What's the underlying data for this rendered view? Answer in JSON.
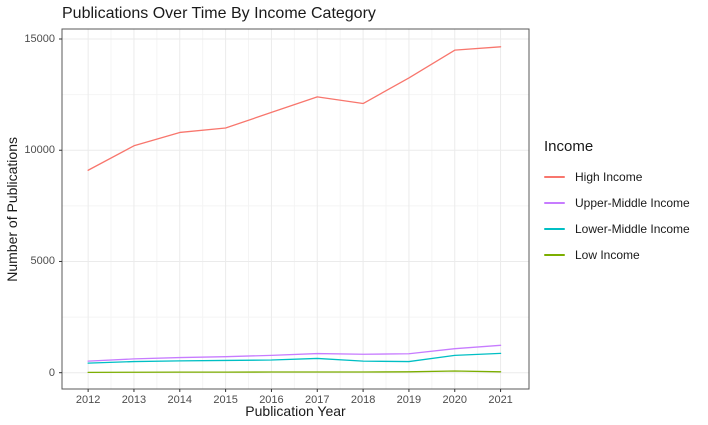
{
  "chart_data": {
    "type": "line",
    "title": "Publications Over Time By Income Category",
    "xlabel": "Publication Year",
    "ylabel": "Number of Publications",
    "legend_title": "Income",
    "legend_position": "right",
    "grid": true,
    "x": [
      2012,
      2013,
      2014,
      2015,
      2016,
      2017,
      2018,
      2019,
      2020,
      2021
    ],
    "x_tick_labels": [
      "2012",
      "2013",
      "2014",
      "2015",
      "2016",
      "2017",
      "2018",
      "2019",
      "2020",
      "2021"
    ],
    "y_ticks": [
      {
        "value": 0,
        "label": "0"
      },
      {
        "value": 5000,
        "label": "5000"
      },
      {
        "value": 10000,
        "label": "10000"
      },
      {
        "value": 15000,
        "label": "15000"
      }
    ],
    "xlim": [
      2011.43,
      2021.62
    ],
    "ylim": [
      -733,
      15450
    ],
    "series": [
      {
        "name": "High Income",
        "color": "#F8766D",
        "values": [
          9100,
          10200,
          10800,
          11000,
          11700,
          12400,
          12100,
          13250,
          14500,
          14650
        ]
      },
      {
        "name": "Upper-Middle Income",
        "color": "#C77CFF",
        "values": [
          520,
          620,
          680,
          720,
          780,
          860,
          830,
          850,
          1080,
          1230
        ]
      },
      {
        "name": "Lower-Middle Income",
        "color": "#00BFC4",
        "values": [
          430,
          500,
          530,
          550,
          570,
          640,
          520,
          500,
          780,
          870
        ]
      },
      {
        "name": "Low Income",
        "color": "#7CAE00",
        "values": [
          15,
          20,
          25,
          25,
          30,
          30,
          30,
          40,
          75,
          40
        ]
      }
    ],
    "colors": {
      "background": "#ffffff",
      "panel_background": "#ffffff",
      "panel_border": "#595959",
      "grid_major": "#ebebeb",
      "grid_minor": "#f4f4f4",
      "tick_mark": "#333333",
      "tick_text": "#4d4d4d",
      "title_text": "#1a1a1a"
    }
  }
}
